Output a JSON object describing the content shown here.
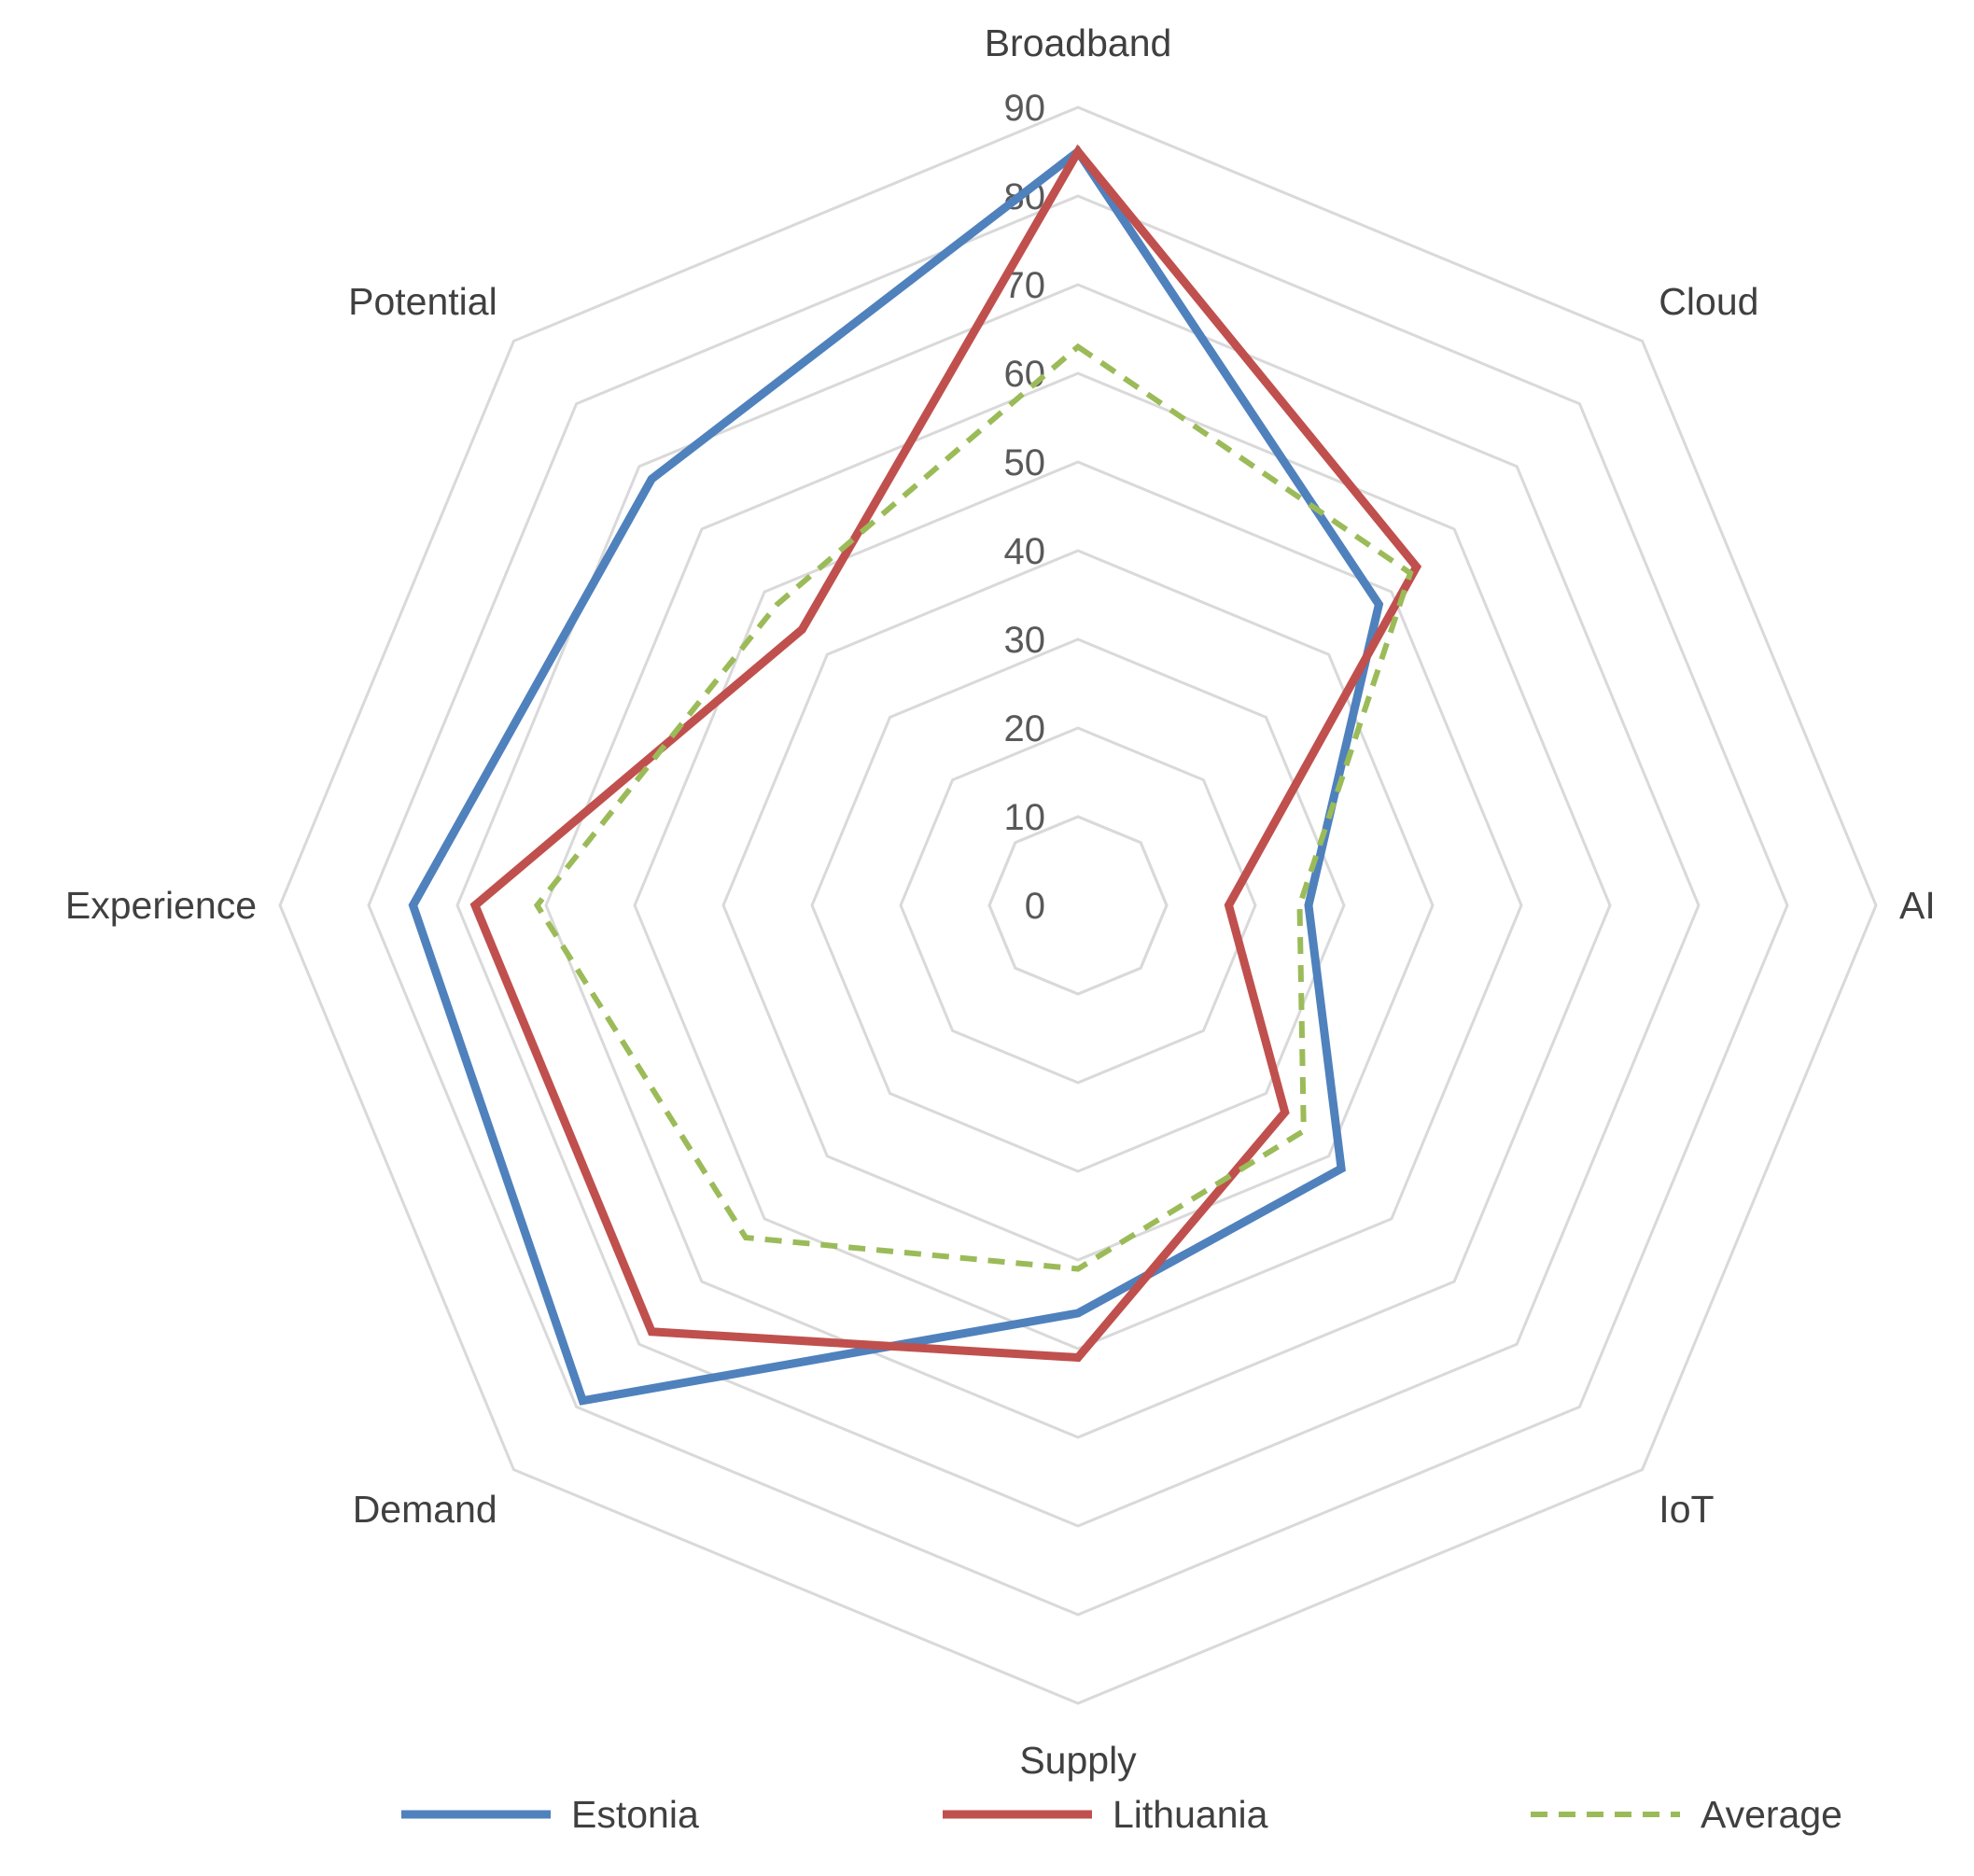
{
  "chart_data": {
    "type": "radar",
    "title": "",
    "axes": [
      "Broadband",
      "Cloud",
      "AI",
      "IoT",
      "Supply",
      "Demand",
      "Experience",
      "Potential"
    ],
    "range": [
      0,
      90
    ],
    "ticks": [
      0,
      10,
      20,
      30,
      40,
      50,
      60,
      70,
      80,
      90
    ],
    "grid": true,
    "legend_position": "bottom",
    "series": [
      {
        "name": "Estonia",
        "values": [
          85,
          48,
          26,
          42,
          46,
          79,
          75,
          68
        ],
        "color": "#4f81bd",
        "dash": "solid"
      },
      {
        "name": "Lithuania",
        "values": [
          85,
          54,
          17,
          33,
          51,
          68,
          68,
          44
        ],
        "color": "#c0504d",
        "dash": "solid"
      },
      {
        "name": "Average",
        "values": [
          63,
          53,
          25,
          36,
          41,
          53,
          61,
          48
        ],
        "color": "#9bbb59",
        "dash": "dashed"
      }
    ]
  }
}
